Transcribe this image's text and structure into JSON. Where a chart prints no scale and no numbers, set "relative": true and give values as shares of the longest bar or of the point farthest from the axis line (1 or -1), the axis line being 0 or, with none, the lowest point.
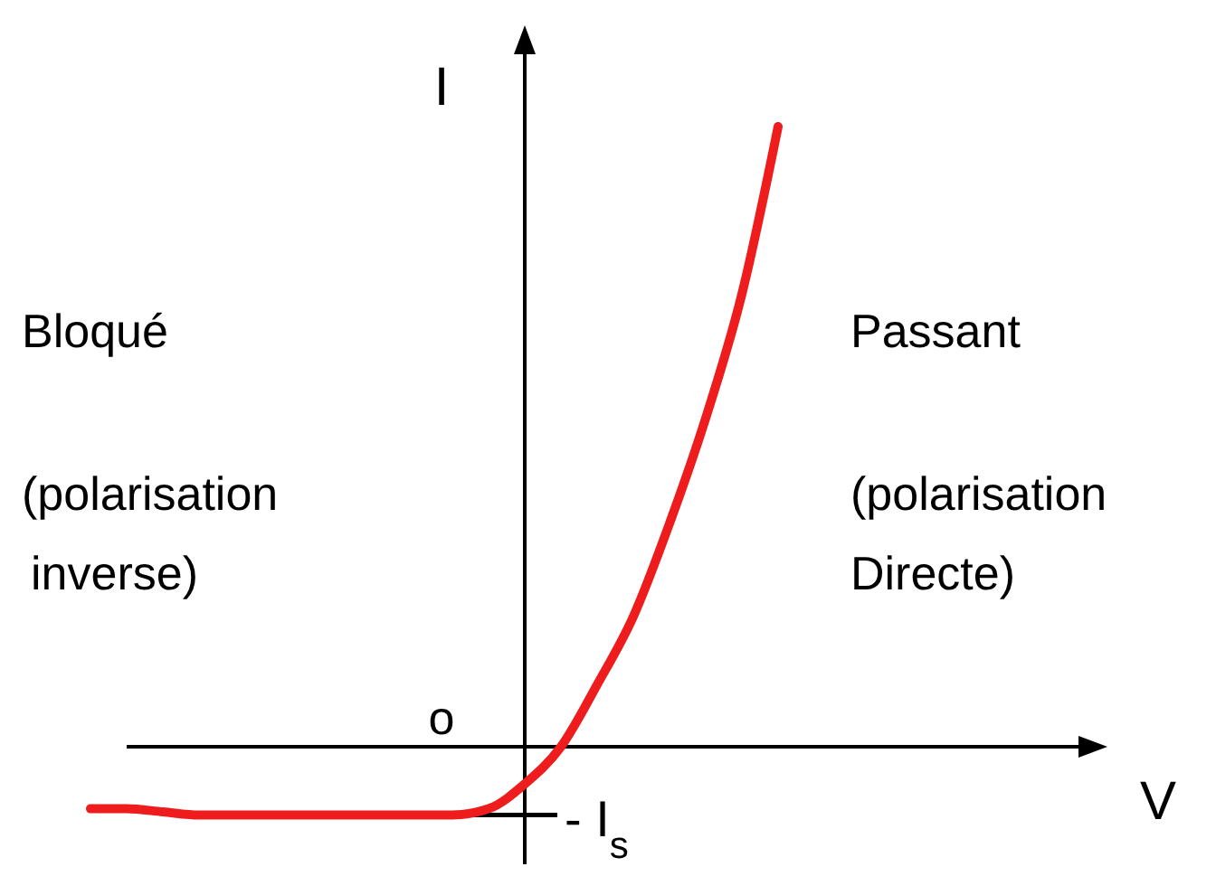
{
  "chart_data": {
    "type": "line",
    "relative": true,
    "ylabel": "I",
    "categories": [
      null,
      null,
      null,
      null,
      null,
      null,
      null,
      null,
      null,
      null,
      null,
      null,
      null,
      null,
      null,
      null,
      null,
      null,
      null,
      null
    ],
    "series": [
      {
        "color": "#ee1c1c",
        "values": [
          -0.1,
          -0.1,
          -0.105,
          -0.11,
          -0.11,
          -0.11,
          -0.11,
          -0.11,
          -0.11,
          -0.11,
          -0.11,
          -0.1,
          -0.06,
          0.0,
          0.1,
          0.21,
          0.36,
          0.53,
          0.73,
          1.0
        ]
      }
    ],
    "ref_lines": [
      {
        "axis": "y",
        "value": -0.11,
        "label": "- I$_{s}$",
        "color": "#000000"
      }
    ],
    "annotations": [
      "Bloqué",
      "(polarisation inverse)",
      "Passant",
      "(polarisation Directe)",
      "o",
      "V"
    ],
    "marker": "none",
    "line_style": "solid"
  }
}
